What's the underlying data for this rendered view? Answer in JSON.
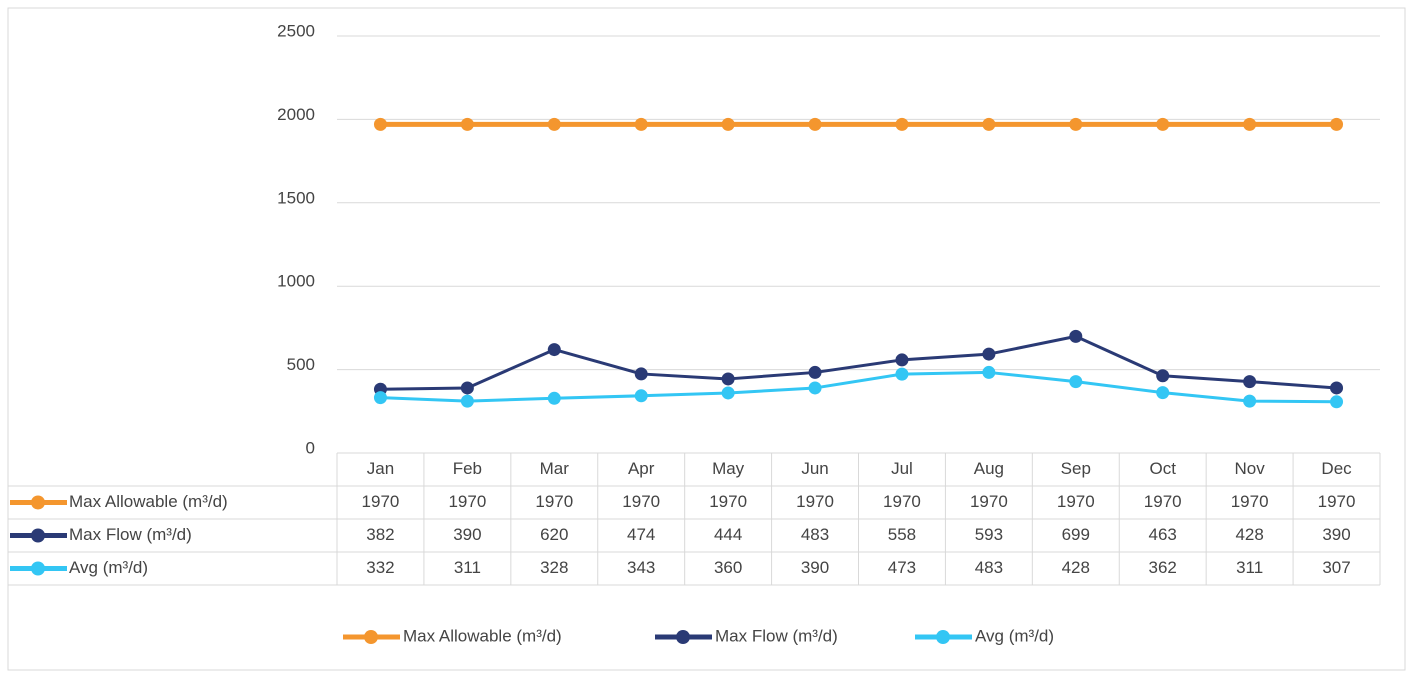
{
  "chart_data": {
    "type": "line",
    "categories": [
      "Jan",
      "Feb",
      "Mar",
      "Apr",
      "May",
      "Jun",
      "Jul",
      "Aug",
      "Sep",
      "Oct",
      "Nov",
      "Dec"
    ],
    "series": [
      {
        "name": "Max Allowable (m³/d)",
        "color": "#f4962e",
        "values": [
          1970,
          1970,
          1970,
          1970,
          1970,
          1970,
          1970,
          1970,
          1970,
          1970,
          1970,
          1970
        ]
      },
      {
        "name": "Max Flow (m³/d)",
        "color": "#2a3a75",
        "values": [
          382,
          390,
          620,
          474,
          444,
          483,
          558,
          593,
          699,
          463,
          428,
          390
        ]
      },
      {
        "name": "Avg (m³/d)",
        "color": "#33c6f4",
        "values": [
          332,
          311,
          328,
          343,
          360,
          390,
          473,
          483,
          428,
          362,
          311,
          307
        ]
      }
    ],
    "ylim": [
      0,
      2500
    ],
    "yticks": [
      0,
      500,
      1000,
      1500,
      2000,
      2500
    ],
    "grid": true,
    "legend": "bottom",
    "data_table": true
  }
}
